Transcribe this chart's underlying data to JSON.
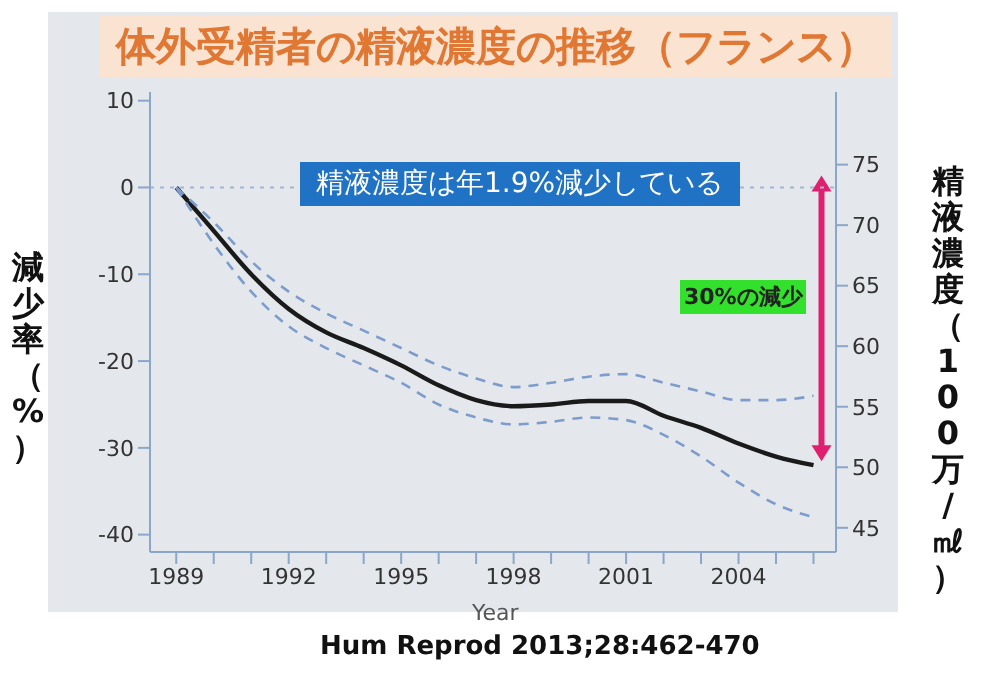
{
  "chart_data": {
    "type": "line",
    "title": "体外受精者の精液濃度の推移（フランス）",
    "xlabel": "Year",
    "ylabel": "減少率（%）",
    "y2label": "精液濃度（100万/㎖）",
    "x": [
      1989,
      1990,
      1991,
      1992,
      1993,
      1994,
      1995,
      1996,
      1997,
      1998,
      1999,
      2000,
      2001,
      2002,
      2003,
      2004,
      2005,
      2006
    ],
    "series": [
      {
        "color": "#1a1a1a",
        "line_style": "solid",
        "values": [
          0,
          -5,
          -10,
          -14,
          -16.7,
          -18.5,
          -20.5,
          -22.8,
          -24.5,
          -25.2,
          -25,
          -24.6,
          -24.6,
          -26.3,
          -27.7,
          -29.5,
          -31,
          -32
        ]
      },
      {
        "color": "#7d9ccc",
        "line_style": "dashed",
        "values": [
          0,
          -4,
          -8.5,
          -12,
          -14.5,
          -16.5,
          -18.5,
          -20.5,
          -22,
          -23,
          -22.5,
          -21.8,
          -21.5,
          -22.5,
          -23.5,
          -24.5,
          -24.5,
          -24
        ]
      },
      {
        "color": "#7d9ccc",
        "line_style": "dashed",
        "values": [
          0,
          -6.5,
          -12,
          -16,
          -18.5,
          -20.5,
          -22.5,
          -25,
          -26.5,
          -27.3,
          -27,
          -26.5,
          -26.8,
          -28.5,
          -31,
          -34,
          -36.5,
          -38
        ]
      }
    ],
    "xlim": [
      1988.3,
      2006.6
    ],
    "xticks": [
      1989,
      {
        "value": 1990,
        "label": null
      },
      {
        "value": 1991,
        "label": null
      },
      1992,
      {
        "value": 1993,
        "label": null
      },
      {
        "value": 1994,
        "label": null
      },
      1995,
      {
        "value": 1996,
        "label": null
      },
      {
        "value": 1997,
        "label": null
      },
      1998,
      {
        "value": 1999,
        "label": null
      },
      {
        "value": 2000,
        "label": null
      },
      2001,
      {
        "value": 2002,
        "label": null
      },
      {
        "value": 2003,
        "label": null
      },
      2004,
      {
        "value": 2005,
        "label": null
      },
      {
        "value": 2006,
        "label": null
      }
    ],
    "ylim": [
      -42,
      11
    ],
    "yticks": [
      10,
      0,
      -10,
      -20,
      -30,
      -40
    ],
    "y2lim": [
      43,
      81
    ],
    "y2ticks": [
      45,
      50,
      55,
      60,
      65,
      70,
      75
    ],
    "ref_lines": [
      {
        "axis": "y",
        "value": 0,
        "color": "#9fb6d6",
        "line_style": "dotted"
      }
    ],
    "annotations": [
      "精液濃度は年1.9%減少している",
      "30%の減少",
      "Hum Reprod 2013;28:462-470"
    ],
    "marker": "none"
  }
}
